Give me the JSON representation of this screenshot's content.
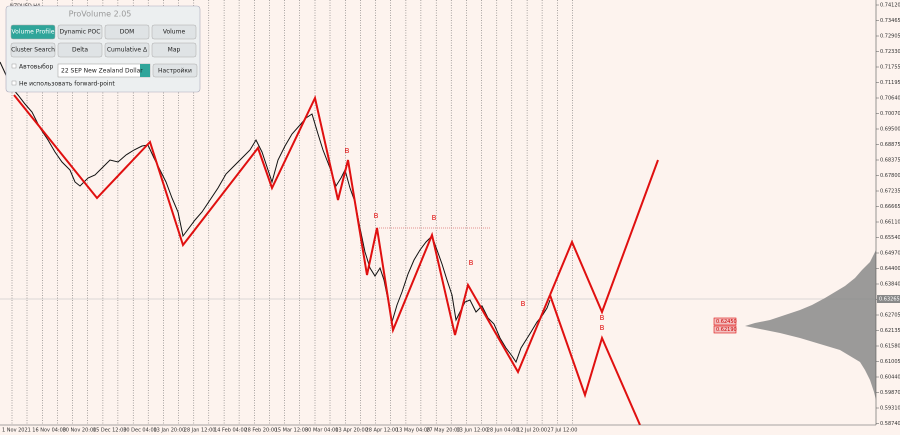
{
  "symbol": "NZDUSD,H4",
  "panel": {
    "title": "ProVolume 2.05",
    "buttons": [
      "Volume Profile",
      "Dynamic POC",
      "DOM",
      "Volume",
      "Cluster Search",
      "Delta",
      "Cumulative Δ",
      "Map"
    ],
    "auto": "Автовыбор",
    "instrument": "22 SEP New Zealand Dollar",
    "settings": "Настройки",
    "forward": "Не использовать forward-point"
  },
  "y_labels": [
    "0.74120",
    "0.73465",
    "0.72905",
    "0.72330",
    "0.71755",
    "0.71195",
    "0.70640",
    "0.70070",
    "0.69500",
    "0.68875",
    "0.68375",
    "0.67800",
    "0.67235",
    "0.66665",
    "0.66110",
    "0.65540",
    "0.64970",
    "0.64400",
    "0.63840",
    "0.63265",
    "0.62705",
    "0.62135",
    "0.61580",
    "0.61005",
    "0.60440",
    "0.59870",
    "0.59310",
    "0.58740"
  ],
  "current_price": "0.63265",
  "box_labels": [
    "0.62450",
    "0.62190"
  ],
  "x_labels": [
    "1 Nov 2021",
    "16 Nov 04:00",
    "30 Nov 20:00",
    "15 Dec 12:00",
    "30 Dec 04:00",
    "13 Jan 20:00",
    "28 Jan 12:00",
    "14 Feb 04:00",
    "28 Feb 20:00",
    "15 Mar 12:00",
    "30 Mar 04:00",
    "13 Apr 20:00",
    "28 Apr 12:00",
    "13 May 04:00",
    "27 May 20:00",
    "13 Jun 12:00",
    "28 Jun 04:00",
    "12 Jul 20:00",
    "27 Jul 12:00"
  ],
  "markers": [
    "B",
    "B",
    "B",
    "B",
    "B",
    "B",
    "B"
  ]
}
